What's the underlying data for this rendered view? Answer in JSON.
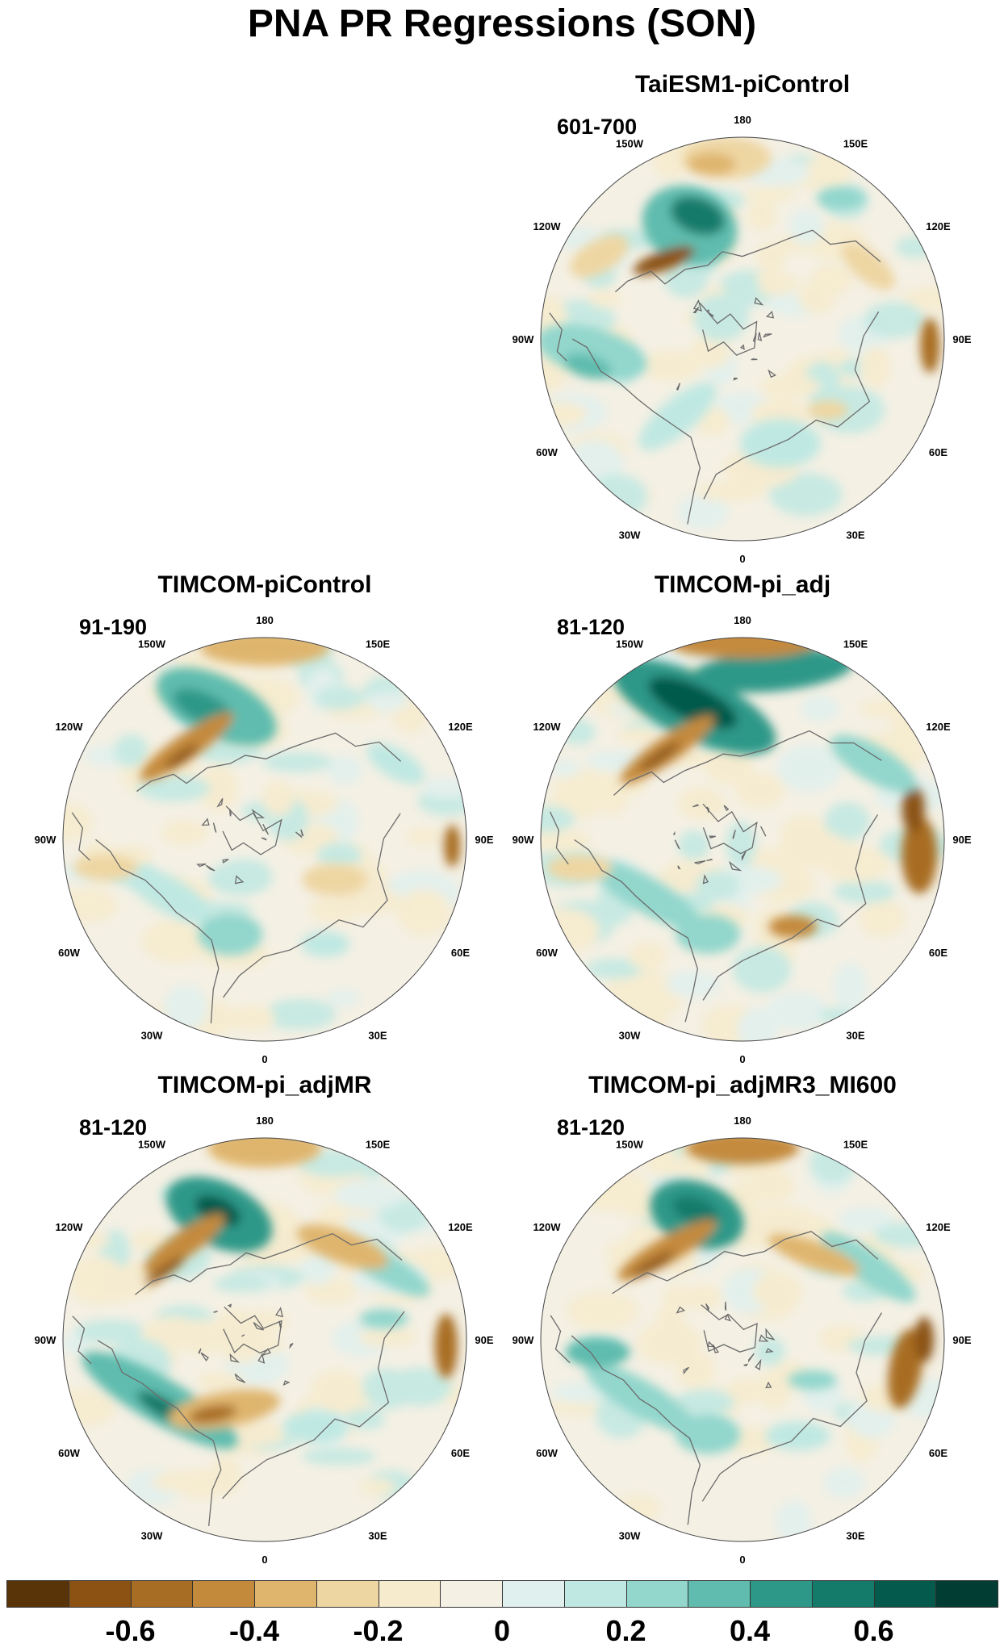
{
  "title": "PNA PR Regressions (SON)",
  "longitude_labels": [
    "180",
    "150E",
    "120E",
    "90E",
    "60E",
    "30E",
    "0",
    "30W",
    "60W",
    "90W",
    "120W",
    "150W"
  ],
  "panels": [
    {
      "name": "TaiESM1-piControl",
      "years": "601-700"
    },
    {
      "name": "TIMCOM-piControl",
      "years": "91-190"
    },
    {
      "name": "TIMCOM-pi_adj",
      "years": "81-120"
    },
    {
      "name": "TIMCOM-pi_adjMR",
      "years": "81-120"
    },
    {
      "name": "TIMCOM-pi_adjMR3_MI600",
      "years": "81-120"
    }
  ],
  "colorbar": {
    "colors": [
      "#5a3409",
      "#8b5214",
      "#a86d24",
      "#c48a3c",
      "#dfb56e",
      "#eed6a3",
      "#f6ebcd",
      "#f4f0e4",
      "#e0f0ee",
      "#c0e8e2",
      "#92d6cc",
      "#5fbcae",
      "#2e9888",
      "#147a6a",
      "#045a4c",
      "#013d33"
    ],
    "labels": [
      "-0.6",
      "-0.4",
      "-0.2",
      "0",
      "0.2",
      "0.4",
      "0.6"
    ]
  },
  "colors": {
    "positive": "#1b8b7d",
    "negative": "#a86d24",
    "neutral": "#f4f0e4",
    "coast": "#6b6b6b"
  }
}
